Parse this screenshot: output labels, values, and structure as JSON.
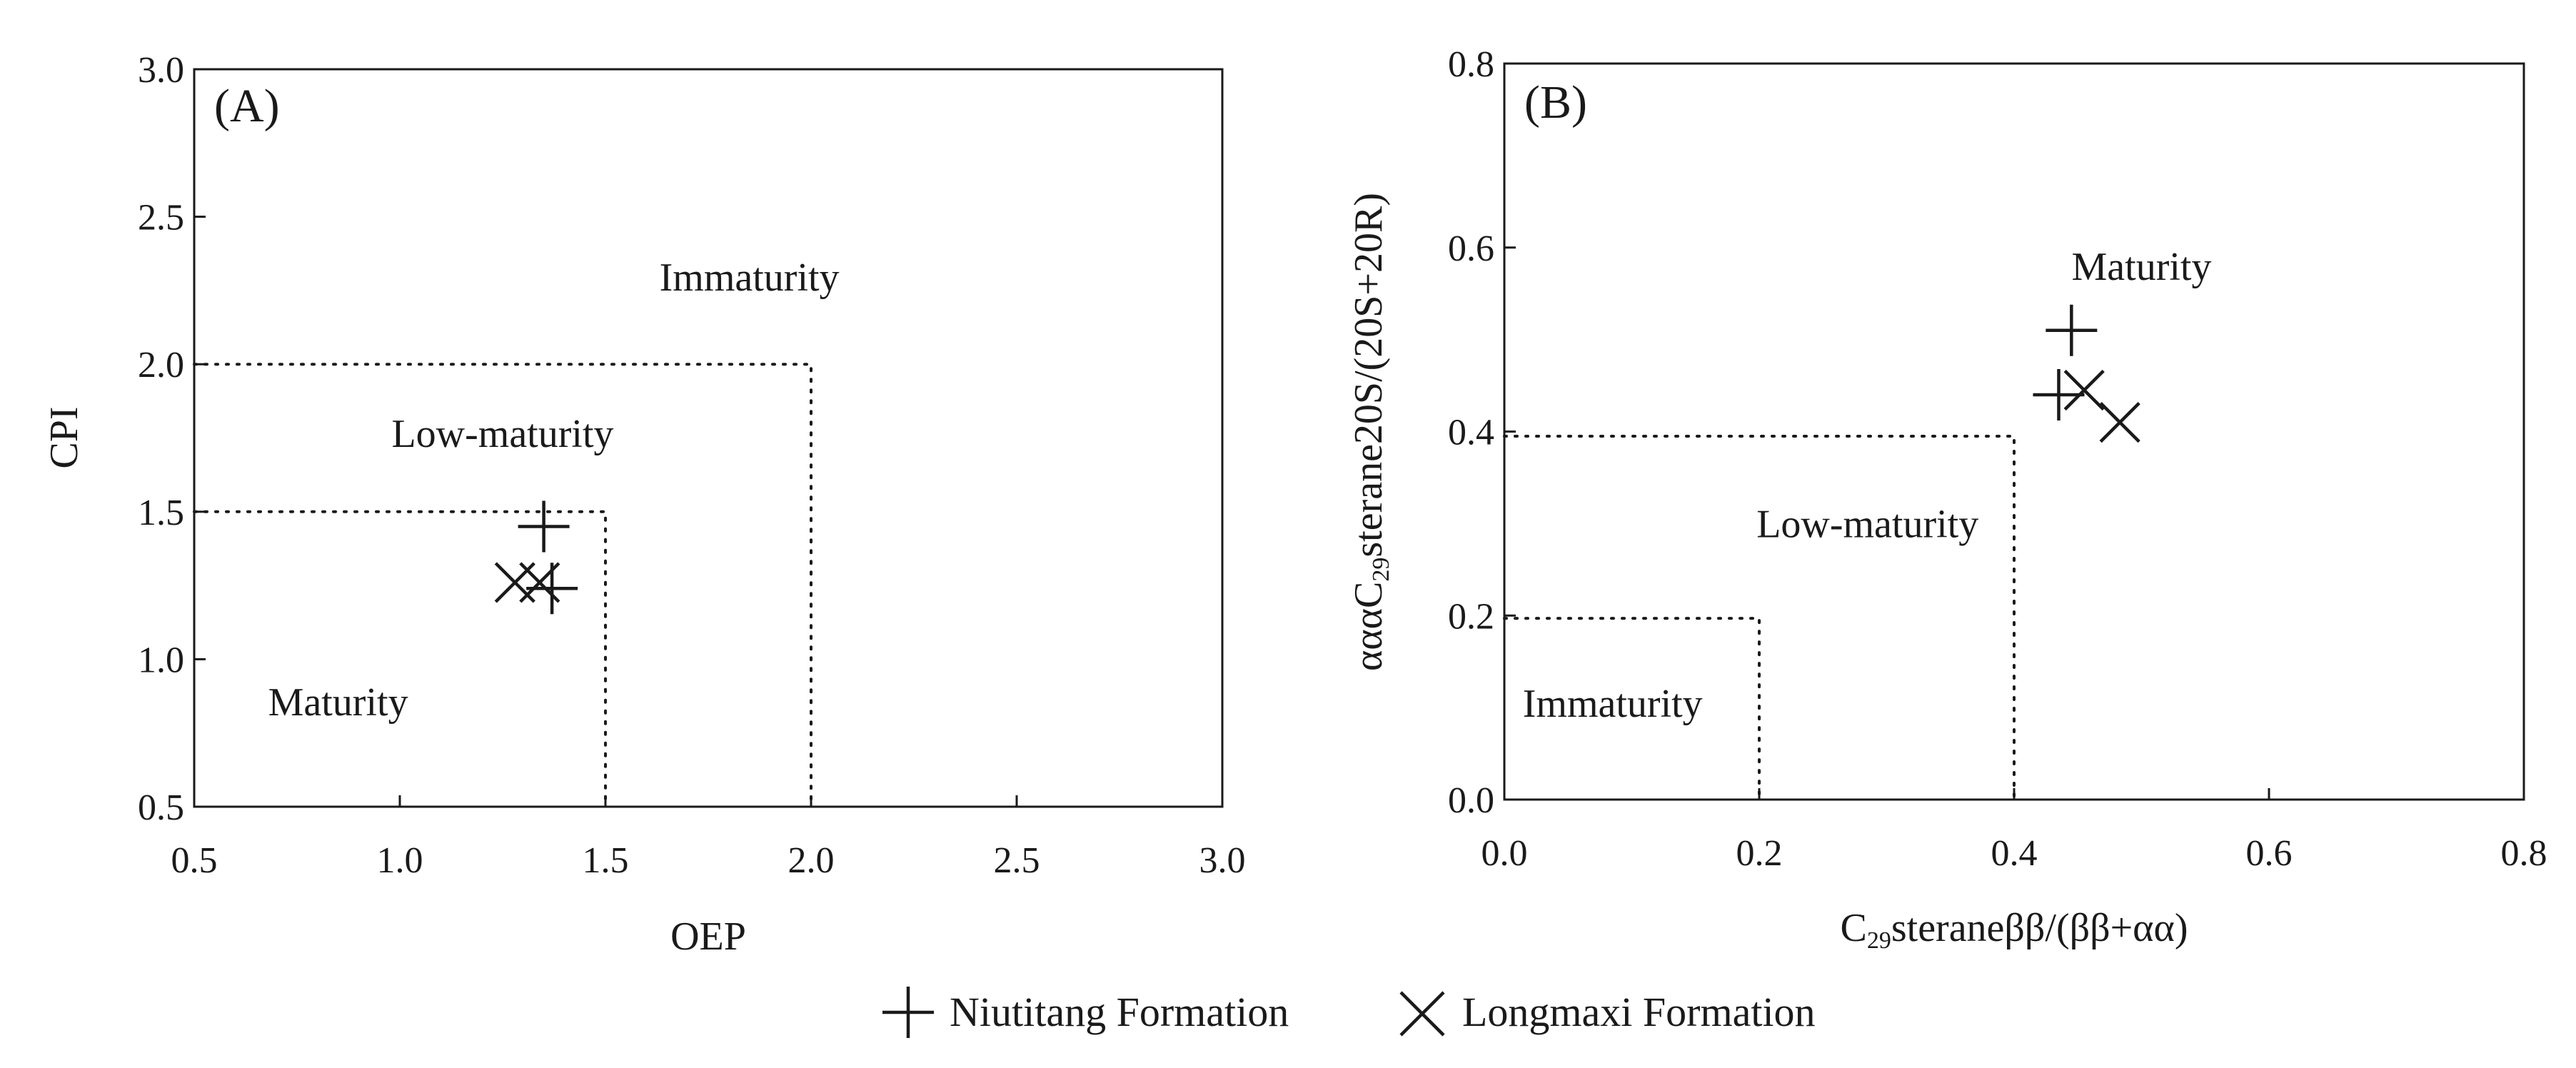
{
  "chart_data": [
    {
      "type": "scatter",
      "panel_label": "(A)",
      "xlabel": "OEP",
      "ylabel": "CPI",
      "xlim": [
        0.5,
        3.0
      ],
      "ylim": [
        0.5,
        3.0
      ],
      "xticks": [
        "0.5",
        "1.0",
        "1.5",
        "2.0",
        "2.5",
        "3.0"
      ],
      "yticks": [
        "0.5",
        "1.0",
        "1.5",
        "2.0",
        "2.5",
        "3.0"
      ],
      "regions": [
        {
          "label": "Immaturity",
          "x": 1.85,
          "y": 2.25
        },
        {
          "label": "Low-maturity",
          "x": 1.25,
          "y": 1.72
        },
        {
          "label": "Maturity",
          "x": 0.85,
          "y": 0.81
        }
      ],
      "boundaries": [
        {
          "x_max": 2.0,
          "y_max": 2.0
        },
        {
          "x_max": 1.5,
          "y_max": 1.5
        }
      ],
      "series": [
        {
          "name": "Niutitang Formation",
          "marker": "plus",
          "points": [
            [
              1.35,
              1.45
            ],
            [
              1.37,
              1.24
            ]
          ]
        },
        {
          "name": "Longmaxi Formation",
          "marker": "cross",
          "points": [
            [
              1.28,
              1.26
            ],
            [
              1.34,
              1.26
            ]
          ]
        }
      ]
    },
    {
      "type": "scatter",
      "panel_label": "(B)",
      "xlabel_parts": [
        "C",
        "29",
        "steraneββ/(ββ+αα)"
      ],
      "ylabel_parts": [
        "αααC",
        "29",
        "sterane20S/(20S+20R)"
      ],
      "xlim": [
        0.0,
        0.8
      ],
      "ylim": [
        0.0,
        0.8
      ],
      "xticks": [
        "0.0",
        "0.2",
        "0.4",
        "0.6",
        "0.8"
      ],
      "yticks": [
        "0.0",
        "0.2",
        "0.4",
        "0.6",
        "0.8"
      ],
      "regions": [
        {
          "label": "Maturity",
          "x": 0.5,
          "y": 0.565
        },
        {
          "label": "Low-maturity",
          "x": 0.285,
          "y": 0.285
        },
        {
          "label": "Immaturity",
          "x": 0.085,
          "y": 0.09
        }
      ],
      "boundaries": [
        {
          "x_max": 0.4,
          "y_max": 0.395
        },
        {
          "x_max": 0.2,
          "y_max": 0.197
        }
      ],
      "series": [
        {
          "name": "Niutitang Formation",
          "marker": "plus",
          "points": [
            [
              0.445,
              0.51
            ],
            [
              0.435,
              0.44
            ]
          ]
        },
        {
          "name": "Longmaxi Formation",
          "marker": "cross",
          "points": [
            [
              0.455,
              0.445
            ],
            [
              0.483,
              0.41
            ]
          ]
        }
      ]
    }
  ],
  "legend": {
    "items": [
      {
        "label": "Niutitang Formation",
        "marker": "plus"
      },
      {
        "label": "Longmaxi Formation",
        "marker": "cross"
      }
    ]
  }
}
